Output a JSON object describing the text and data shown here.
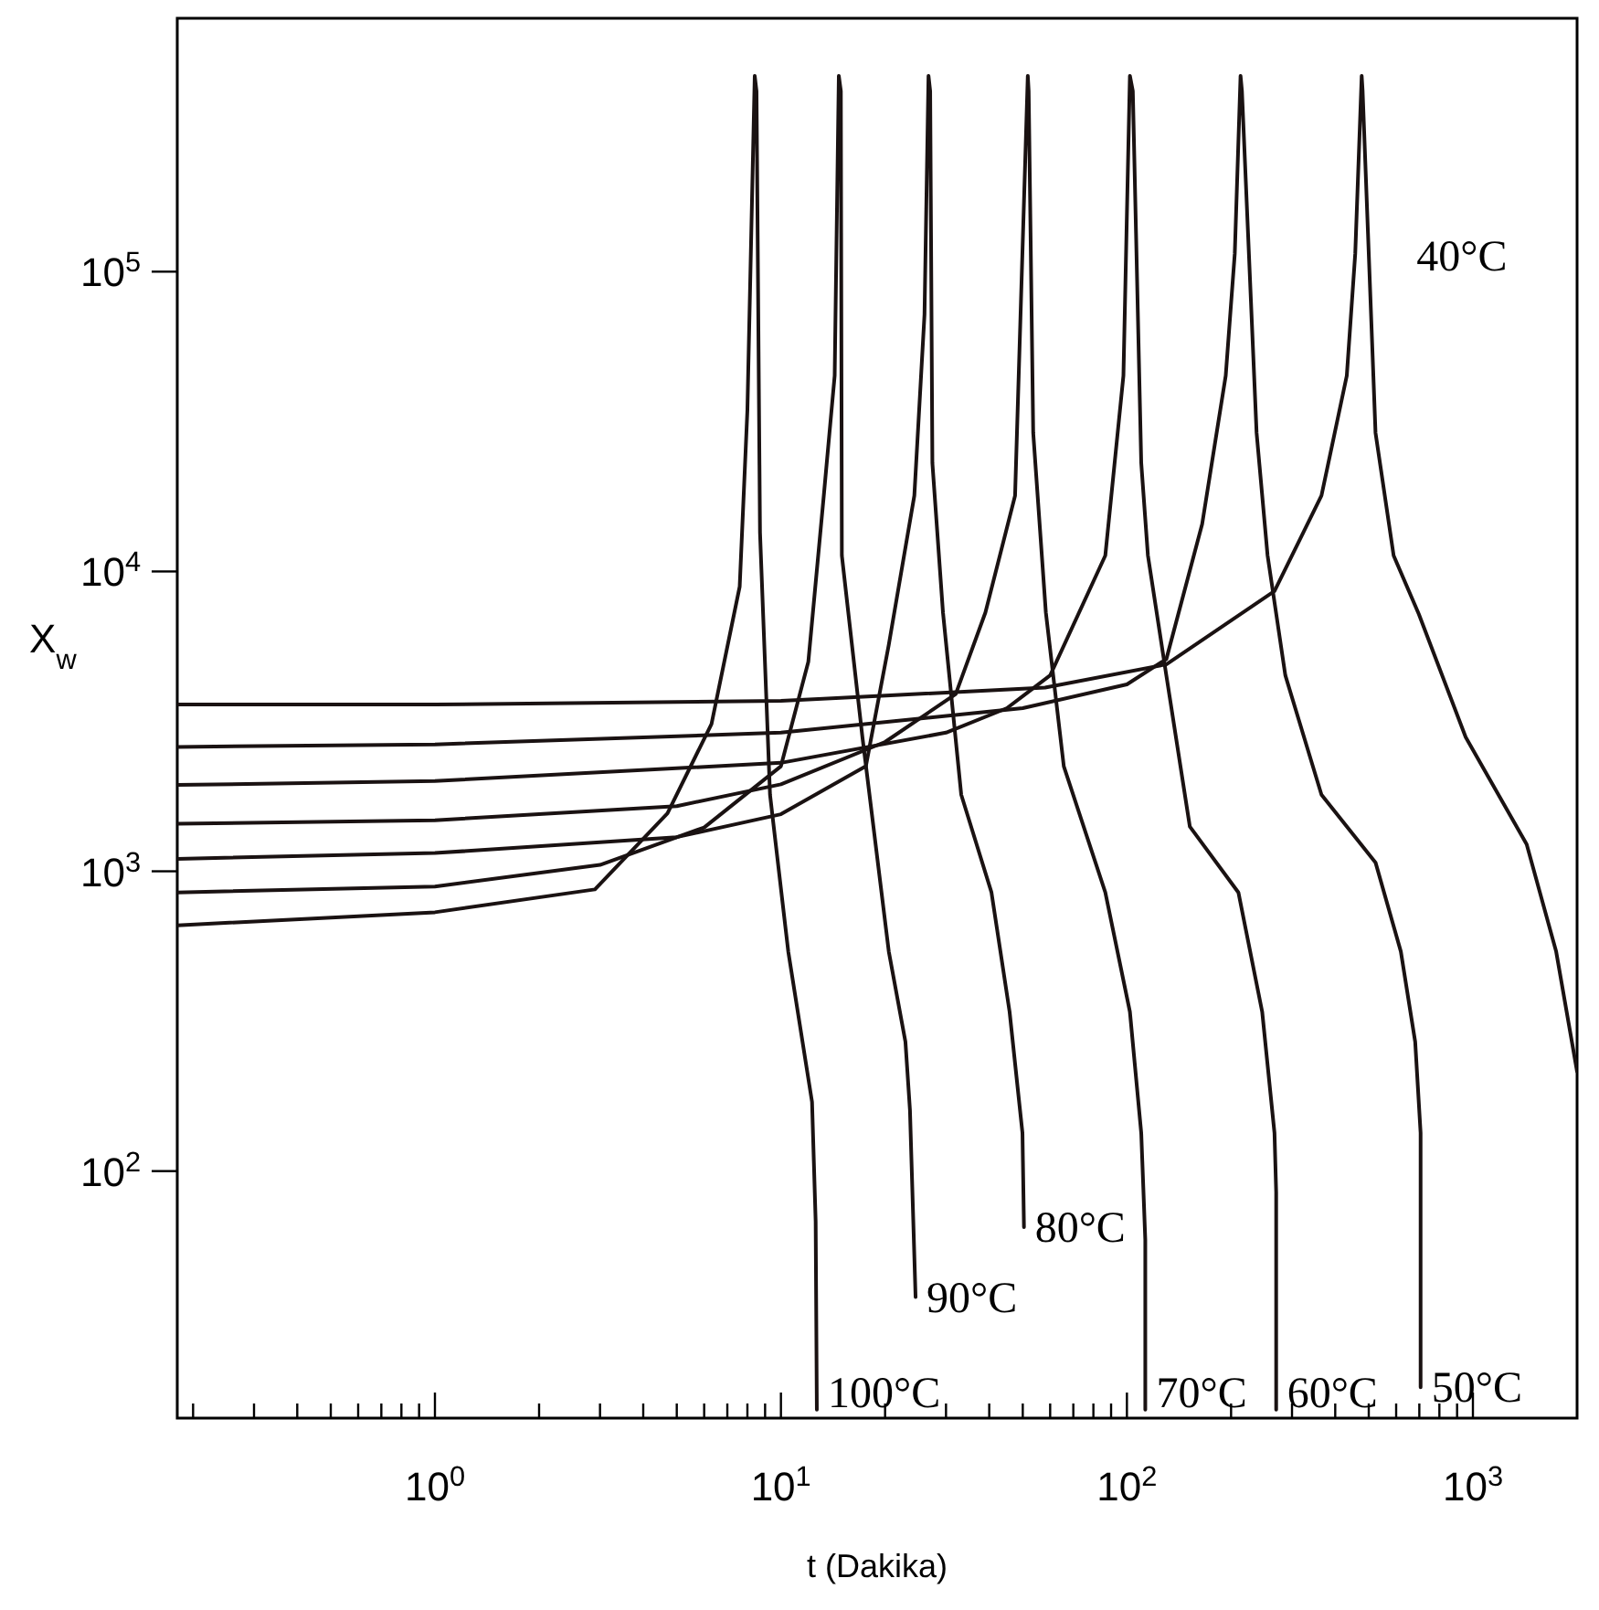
{
  "chart_data": {
    "type": "line",
    "xlabel": "t (Dakika)",
    "ylabel": "X$_{w}$",
    "log": "xy",
    "xlim": [
      0.18,
      2000
    ],
    "ylim": [
      15,
      700000
    ],
    "xticks": [
      {
        "value": 0.2,
        "label": null
      },
      {
        "value": 0.3,
        "label": null
      },
      {
        "value": 0.4,
        "label": null
      },
      {
        "value": 0.5,
        "label": null
      },
      {
        "value": 0.6,
        "label": null
      },
      {
        "value": 0.7,
        "label": null
      },
      {
        "value": 0.8,
        "label": null
      },
      {
        "value": 0.9,
        "label": null
      },
      {
        "value": 1,
        "label": "10$^{0}$"
      },
      {
        "value": 2,
        "label": null
      },
      {
        "value": 3,
        "label": null
      },
      {
        "value": 4,
        "label": null
      },
      {
        "value": 5,
        "label": null
      },
      {
        "value": 6,
        "label": null
      },
      {
        "value": 7,
        "label": null
      },
      {
        "value": 8,
        "label": null
      },
      {
        "value": 9,
        "label": null
      },
      {
        "value": 10,
        "label": "10$^{1}$"
      },
      {
        "value": 20,
        "label": null
      },
      {
        "value": 30,
        "label": null
      },
      {
        "value": 40,
        "label": null
      },
      {
        "value": 50,
        "label": null
      },
      {
        "value": 60,
        "label": null
      },
      {
        "value": 70,
        "label": null
      },
      {
        "value": 80,
        "label": null
      },
      {
        "value": 90,
        "label": null
      },
      {
        "value": 100,
        "label": "10$^{2}$"
      },
      {
        "value": 200,
        "label": null
      },
      {
        "value": 300,
        "label": null
      },
      {
        "value": 400,
        "label": null
      },
      {
        "value": 500,
        "label": null
      },
      {
        "value": 600,
        "label": null
      },
      {
        "value": 700,
        "label": null
      },
      {
        "value": 800,
        "label": null
      },
      {
        "value": 900,
        "label": null
      },
      {
        "value": 1000,
        "label": "10$^{3}$"
      }
    ],
    "yticks": [
      {
        "value": 100,
        "label": "10$^{2}$"
      },
      {
        "value": 1000,
        "label": "10$^{3}$"
      },
      {
        "value": 10000,
        "label": "10$^{4}$"
      },
      {
        "value": 100000,
        "label": "10$^{5}$"
      }
    ],
    "series": [
      {
        "name": "100°C",
        "color": "#1a1212",
        "x": [
          0.18,
          1,
          2.9,
          4.7,
          6.3,
          7.6,
          8.0,
          8.4,
          8.5,
          8.7,
          9.3,
          10.5,
          12.3,
          12.6,
          12.7
        ],
        "values": [
          660,
          730,
          870,
          1560,
          3100,
          8900,
          34500,
          450000,
          400000,
          13500,
          1800,
          540,
          170,
          68,
          16
        ]
      },
      {
        "name": "90°C",
        "color": "#1a1212",
        "x": [
          0.18,
          1,
          3,
          6,
          10,
          12,
          13.3,
          14.3,
          14.7,
          14.9,
          15.0,
          17.2,
          20.5,
          22.9,
          23.6,
          24.5
        ],
        "values": [
          850,
          890,
          1050,
          1400,
          2240,
          5000,
          17900,
          45000,
          450000,
          400000,
          11300,
          2800,
          540,
          270,
          160,
          38
        ]
      },
      {
        "name": "80°C",
        "color": "#1a1212",
        "x": [
          0.18,
          1,
          5,
          10,
          17.6,
          20.5,
          24.3,
          26,
          26.7,
          27,
          27.4,
          29.4,
          33.2,
          40.6,
          45.8,
          49.9,
          50.4
        ],
        "values": [
          1100,
          1150,
          1300,
          1550,
          2240,
          5700,
          17900,
          72000,
          450000,
          400000,
          23000,
          7300,
          1800,
          850,
          340,
          134,
          65
        ]
      },
      {
        "name": "70°C",
        "color": "#1a1212",
        "x": [
          0.18,
          1,
          5,
          10,
          20,
          32,
          39,
          47.5,
          51.7,
          52,
          53.6,
          58.3,
          65.7,
          86.6,
          102,
          110,
          113,
          113
        ],
        "values": [
          1440,
          1480,
          1650,
          1950,
          2700,
          3900,
          7300,
          17900,
          450000,
          400000,
          29000,
          7300,
          2240,
          850,
          340,
          134,
          59,
          16
        ]
      },
      {
        "name": "60°C",
        "color": "#1a1212",
        "x": [
          0.18,
          1,
          10,
          30,
          45,
          60,
          86.6,
          97.7,
          102,
          104,
          110,
          115,
          130,
          152,
          210,
          246,
          267,
          270,
          270
        ],
        "values": [
          1940,
          2000,
          2300,
          2900,
          3500,
          4500,
          11300,
          45000,
          450000,
          400000,
          23000,
          11300,
          4500,
          1410,
          850,
          340,
          134,
          85,
          16
        ]
      },
      {
        "name": "50°C",
        "color": "#1a1212",
        "x": [
          0.18,
          1,
          10,
          50,
          100,
          130,
          165,
          193,
          205,
          213,
          215,
          237,
          255,
          287,
          365,
          523,
          619,
          681,
          706,
          706
        ],
        "values": [
          2600,
          2650,
          2900,
          3500,
          4200,
          5100,
          14400,
          45000,
          115000,
          450000,
          400000,
          29000,
          11300,
          4500,
          1800,
          1070,
          540,
          270,
          134,
          19
        ]
      },
      {
        "name": "40°C",
        "color": "#1a1212",
        "x": [
          0.18,
          1,
          10,
          58,
          130,
          267,
          365,
          432,
          457,
          477,
          480,
          523,
          590,
          698,
          953,
          1430,
          1740,
          2000
        ],
        "values": [
          3600,
          3600,
          3700,
          4100,
          4900,
          8600,
          17900,
          45000,
          115000,
          450000,
          400000,
          29000,
          11300,
          7200,
          2800,
          1230,
          540,
          215
        ]
      }
    ]
  }
}
